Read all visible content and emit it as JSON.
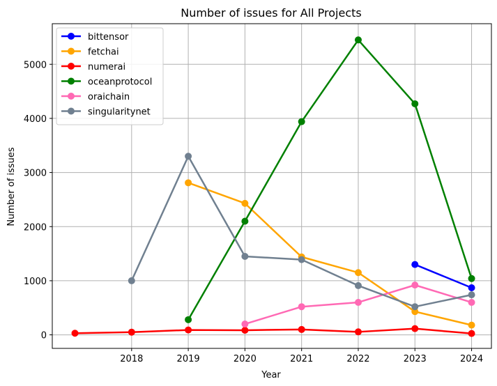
{
  "chart_data": {
    "type": "line",
    "title": "Number of issues for All Projects",
    "xlabel": "Year",
    "ylabel": "Number of issues",
    "xlim": [
      2016.6,
      2024.35
    ],
    "ylim": [
      -250,
      5750
    ],
    "xticks": [
      2018,
      2019,
      2020,
      2021,
      2022,
      2023,
      2024
    ],
    "yticks": [
      0,
      1000,
      2000,
      3000,
      4000,
      5000
    ],
    "grid": true,
    "legend_position": "top-left",
    "series": [
      {
        "name": "bittensor",
        "color": "#0000ff",
        "x": [
          2023,
          2024
        ],
        "y": [
          1300,
          870
        ]
      },
      {
        "name": "fetchai",
        "color": "#ffa500",
        "x": [
          2019,
          2020,
          2021,
          2022,
          2023,
          2024
        ],
        "y": [
          2810,
          2430,
          1440,
          1150,
          430,
          180
        ]
      },
      {
        "name": "numerai",
        "color": "#ff0000",
        "x": [
          2017,
          2018,
          2019,
          2020,
          2021,
          2022,
          2023,
          2024
        ],
        "y": [
          30,
          50,
          90,
          85,
          100,
          55,
          115,
          25
        ]
      },
      {
        "name": "oceanprotocol",
        "color": "#008000",
        "x": [
          2019,
          2020,
          2021,
          2022,
          2023,
          2024
        ],
        "y": [
          280,
          2100,
          3940,
          5450,
          4270,
          1040
        ]
      },
      {
        "name": "oraichain",
        "color": "#ff69b4",
        "x": [
          2020,
          2021,
          2022,
          2023,
          2024
        ],
        "y": [
          200,
          520,
          600,
          920,
          600
        ]
      },
      {
        "name": "singularitynet",
        "color": "#708090",
        "x": [
          2018,
          2019,
          2020,
          2021,
          2022,
          2023,
          2024
        ],
        "y": [
          1000,
          3300,
          1450,
          1390,
          910,
          520,
          740
        ]
      }
    ]
  }
}
